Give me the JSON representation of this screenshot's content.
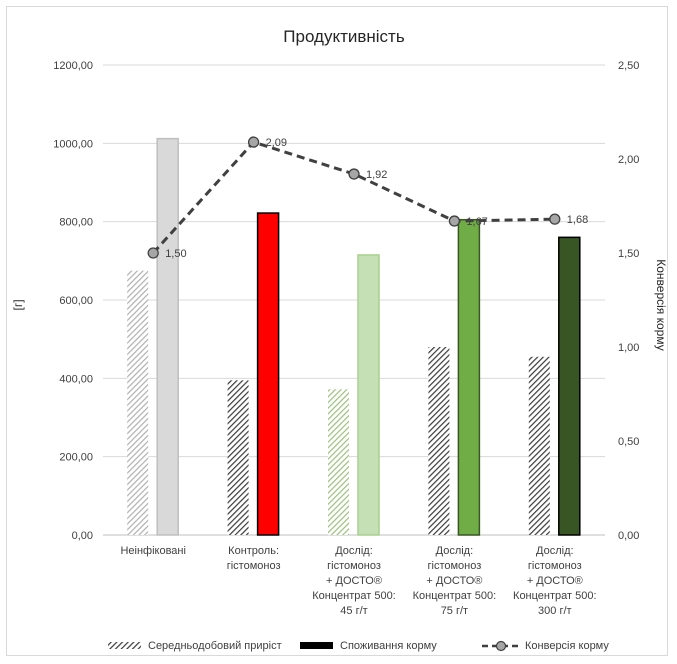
{
  "chart_data": {
    "type": "bar",
    "title": "Продуктивність",
    "ylabel": "[г]",
    "y2label": "Конверсія корму",
    "ylim": [
      0,
      1200
    ],
    "y2lim": [
      0,
      2.5
    ],
    "y_ticks": [
      "0,00",
      "200,00",
      "400,00",
      "600,00",
      "800,00",
      "1000,00",
      "1200,00"
    ],
    "y2_ticks": [
      "0,00",
      "0,50",
      "1,00",
      "1,50",
      "2,00",
      "2,50"
    ],
    "categories": [
      [
        "Неінфіковані"
      ],
      [
        "Контроль:",
        "гістомоноз"
      ],
      [
        "Дослід:",
        "гістомоноз",
        "+ ДОСТО®",
        "Концентрат 500:",
        "45 г/т"
      ],
      [
        "Дослід:",
        "гістомоноз",
        "+ ДОСТО®",
        "Концентрат 500:",
        "75 г/т"
      ],
      [
        "Дослід:",
        "гістомоноз",
        "+ ДОСТО®",
        "Концентрат 500:",
        "300 г/т"
      ]
    ],
    "series": [
      {
        "name": "Середньодобовий приріст",
        "kind": "bar",
        "pattern": "hatch",
        "values": [
          675,
          395,
          372,
          480,
          455
        ],
        "colors": [
          "#bdbdbd",
          "#3a3a3a",
          "#a6c48a",
          "#3a3a3a",
          "#3a3a3a"
        ]
      },
      {
        "name": "Споживання корму",
        "kind": "bar",
        "pattern": "solid",
        "values": [
          1012,
          822,
          715,
          805,
          760
        ],
        "colors": [
          "#d9d9d9",
          "#ff0000",
          "#c5e0b4",
          "#70ad47",
          "#375623"
        ],
        "borders": [
          "#bfbfbf",
          "#000000",
          "#a9d18e",
          "#385723",
          "#000000"
        ]
      },
      {
        "name": "Конверсія корму",
        "kind": "line",
        "axis": "secondary",
        "values": [
          1.5,
          2.09,
          1.92,
          1.67,
          1.68
        ],
        "labels": [
          "1,50",
          "2,09",
          "1,92",
          "1,67",
          "1,68"
        ],
        "color": "#404040"
      }
    ],
    "grid": true,
    "legend": "bottom"
  }
}
